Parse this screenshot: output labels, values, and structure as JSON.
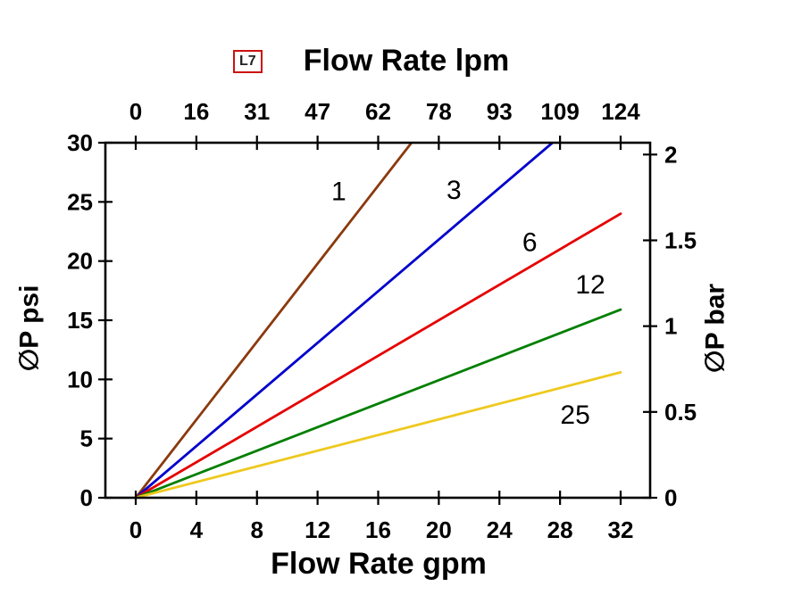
{
  "badge": {
    "label": "L7"
  },
  "chart_data": {
    "type": "line",
    "title_top": "Flow Rate lpm",
    "xlabel_bottom": "Flow Rate gpm",
    "ylabel_left": "∅P psi",
    "ylabel_right": "∅P bar",
    "x_axis_bottom": {
      "unit": "gpm",
      "min": 0,
      "max": 32,
      "ticks": [
        0,
        4,
        8,
        12,
        16,
        20,
        24,
        28,
        32
      ]
    },
    "x_axis_top": {
      "unit": "lpm",
      "tick_labels": [
        "0",
        "16",
        "31",
        "47",
        "62",
        "78",
        "93",
        "109",
        "124"
      ]
    },
    "y_axis_left": {
      "unit": "psi",
      "min": 0,
      "max": 30,
      "ticks": [
        0,
        5,
        10,
        15,
        20,
        25,
        30
      ]
    },
    "y_axis_right": {
      "unit": "bar",
      "ticks": [
        0,
        0.5,
        1,
        1.5,
        2
      ],
      "psi_per_bar": 14.5
    },
    "axis_color": "#000000",
    "grid": false,
    "series": [
      {
        "name": "1",
        "color": "#8a3a0e",
        "points": [
          [
            0,
            0
          ],
          [
            18.2,
            30
          ]
        ],
        "label_at": [
          13.4,
          25.9
        ]
      },
      {
        "name": "3",
        "color": "#0000cc",
        "points": [
          [
            0,
            0
          ],
          [
            27.5,
            30
          ]
        ],
        "label_at": [
          21.0,
          26.0
        ]
      },
      {
        "name": "6",
        "color": "#e60000",
        "points": [
          [
            0,
            0
          ],
          [
            32,
            24.0
          ]
        ],
        "label_at": [
          26.0,
          21.6
        ]
      },
      {
        "name": "12",
        "color": "#007f00",
        "points": [
          [
            0,
            0
          ],
          [
            32,
            15.9
          ]
        ],
        "label_at": [
          30.0,
          18.0
        ]
      },
      {
        "name": "25",
        "color": "#eec91e",
        "points": [
          [
            0,
            0
          ],
          [
            32,
            10.6
          ]
        ],
        "label_at": [
          29.0,
          7.0
        ]
      }
    ]
  }
}
